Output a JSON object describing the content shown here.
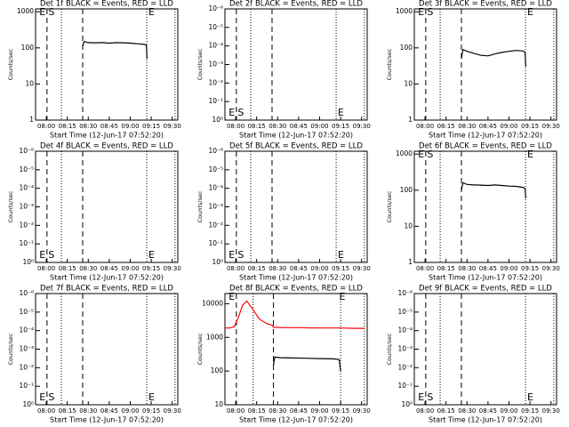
{
  "chart_data": [
    {
      "type": "line",
      "title": "Det 1f BLACK = Events, RED = LLD",
      "x_label": "Start Time (12-Jun-17 07:52:20)",
      "y_label": "Counts/sec",
      "log_scale": true,
      "xlim": [
        472.33,
        574
      ],
      "xticks": [
        {
          "value": 480,
          "label": "08:00"
        },
        {
          "value": 495,
          "label": "08:15"
        },
        {
          "value": 510,
          "label": "08:30"
        },
        {
          "value": 525,
          "label": "08:45"
        },
        {
          "value": 540,
          "label": "09:00"
        },
        {
          "value": 555,
          "label": "09:15"
        },
        {
          "value": 570,
          "label": "09:30"
        }
      ],
      "ylim": [
        1,
        1200
      ],
      "yticks": [
        1,
        10,
        100,
        1000
      ],
      "vlines": [
        {
          "x": 480.5,
          "style": "dashed"
        },
        {
          "x": 490.8,
          "style": "dotted"
        },
        {
          "x": 506,
          "style": "dashed"
        },
        {
          "x": 551.8,
          "style": "dotted"
        },
        {
          "x": 572,
          "style": "dotted"
        }
      ],
      "annotations": [
        {
          "text": "E",
          "x": 475
        },
        {
          "text": "S",
          "x": 481.5
        },
        {
          "text": "E",
          "x": 553
        }
      ],
      "series": [
        {
          "name": "Events",
          "color": "#000000",
          "x": [
            506,
            507,
            510,
            515,
            520,
            525,
            530,
            535,
            540,
            545,
            550,
            551.5,
            552
          ],
          "values": [
            110,
            150,
            140,
            138,
            140,
            135,
            140,
            138,
            135,
            130,
            125,
            120,
            50
          ]
        }
      ]
    },
    {
      "type": "line",
      "title": "Det 2f BLACK = Events, RED = LLD",
      "x_label": "Start Time (12-Jun-17 07:52:20)",
      "y_label": "Counts/sec",
      "log_scale": true,
      "xlim": [
        472.33,
        574
      ],
      "xticks": [
        {
          "value": 480,
          "label": "08:00"
        },
        {
          "value": 495,
          "label": "08:15"
        },
        {
          "value": 510,
          "label": "08:30"
        },
        {
          "value": 525,
          "label": "08:45"
        },
        {
          "value": 540,
          "label": "09:00"
        },
        {
          "value": 555,
          "label": "09:15"
        },
        {
          "value": 570,
          "label": "09:30"
        }
      ],
      "ylim": [
        1,
        1e-06
      ],
      "yticks": [
        {
          "value": 1e-06,
          "label": "10⁻⁶"
        },
        {
          "value": 1e-05,
          "label": "10⁻⁵"
        },
        {
          "value": 0.0001,
          "label": "10⁻⁴"
        },
        {
          "value": 0.001,
          "label": "10⁻³"
        },
        {
          "value": 0.01,
          "label": "10⁻²"
        },
        {
          "value": 0.1,
          "label": "10⁻¹"
        },
        {
          "value": 1,
          "label": "10⁰"
        }
      ],
      "vlines": [
        {
          "x": 480.5,
          "style": "dashed"
        },
        {
          "x": 490.8,
          "style": "dotted"
        },
        {
          "x": 506,
          "style": "dashed"
        },
        {
          "x": 551.8,
          "style": "dotted"
        },
        {
          "x": 572,
          "style": "dotted"
        }
      ],
      "annotations": [
        {
          "text": "E",
          "x": 475
        },
        {
          "text": "S",
          "x": 481.5
        },
        {
          "text": "E",
          "x": 553
        }
      ],
      "series": []
    },
    {
      "type": "line",
      "title": "Det 3f BLACK = Events, RED = LLD",
      "x_label": "Start Time (12-Jun-17 07:52:20)",
      "y_label": "Counts/sec",
      "log_scale": true,
      "xlim": [
        472.33,
        574
      ],
      "xticks": [
        {
          "value": 480,
          "label": "08:00"
        },
        {
          "value": 495,
          "label": "08:15"
        },
        {
          "value": 510,
          "label": "08:30"
        },
        {
          "value": 525,
          "label": "08:45"
        },
        {
          "value": 540,
          "label": "09:00"
        },
        {
          "value": 555,
          "label": "09:15"
        },
        {
          "value": 570,
          "label": "09:30"
        }
      ],
      "ylim": [
        1,
        1200
      ],
      "yticks": [
        1,
        10,
        100,
        1000
      ],
      "vlines": [
        {
          "x": 480.5,
          "style": "dashed"
        },
        {
          "x": 490.8,
          "style": "dotted"
        },
        {
          "x": 506,
          "style": "dashed"
        },
        {
          "x": 551.8,
          "style": "dotted"
        },
        {
          "x": 572,
          "style": "dotted"
        }
      ],
      "annotations": [
        {
          "text": "E",
          "x": 475
        },
        {
          "text": "S",
          "x": 481.5
        },
        {
          "text": "E",
          "x": 553
        }
      ],
      "series": [
        {
          "name": "Events",
          "color": "#000000",
          "x": [
            506,
            507,
            510,
            515,
            520,
            525,
            530,
            535,
            540,
            545,
            550,
            551.5,
            552
          ],
          "values": [
            50,
            90,
            80,
            70,
            62,
            60,
            68,
            75,
            80,
            85,
            82,
            75,
            30
          ]
        }
      ]
    },
    {
      "type": "line",
      "title": "Det 4f BLACK = Events, RED = LLD",
      "x_label": "Start Time (12-Jun-17 07:52:20)",
      "y_label": "Counts/sec",
      "log_scale": true,
      "xlim": [
        472.33,
        574
      ],
      "xticks": [
        {
          "value": 480,
          "label": "08:00"
        },
        {
          "value": 495,
          "label": "08:15"
        },
        {
          "value": 510,
          "label": "08:30"
        },
        {
          "value": 525,
          "label": "08:45"
        },
        {
          "value": 540,
          "label": "09:00"
        },
        {
          "value": 555,
          "label": "09:15"
        },
        {
          "value": 570,
          "label": "09:30"
        }
      ],
      "ylim": [
        1,
        1e-06
      ],
      "yticks": [
        {
          "value": 1e-06,
          "label": "10⁻⁶"
        },
        {
          "value": 1e-05,
          "label": "10⁻⁵"
        },
        {
          "value": 0.0001,
          "label": "10⁻⁴"
        },
        {
          "value": 0.001,
          "label": "10⁻³"
        },
        {
          "value": 0.01,
          "label": "10⁻²"
        },
        {
          "value": 0.1,
          "label": "10⁻¹"
        },
        {
          "value": 1,
          "label": "10⁰"
        }
      ],
      "vlines": [
        {
          "x": 480.5,
          "style": "dashed"
        },
        {
          "x": 490.8,
          "style": "dotted"
        },
        {
          "x": 506,
          "style": "dashed"
        },
        {
          "x": 551.8,
          "style": "dotted"
        },
        {
          "x": 572,
          "style": "dotted"
        }
      ],
      "annotations": [
        {
          "text": "E",
          "x": 475
        },
        {
          "text": "S",
          "x": 481.5
        },
        {
          "text": "E",
          "x": 553
        }
      ],
      "series": []
    },
    {
      "type": "line",
      "title": "Det 5f BLACK = Events, RED = LLD",
      "x_label": "Start Time (12-Jun-17 07:52:20)",
      "y_label": "Counts/sec",
      "log_scale": true,
      "xlim": [
        472.33,
        574
      ],
      "xticks": [
        {
          "value": 480,
          "label": "08:00"
        },
        {
          "value": 495,
          "label": "08:15"
        },
        {
          "value": 510,
          "label": "08:30"
        },
        {
          "value": 525,
          "label": "08:45"
        },
        {
          "value": 540,
          "label": "09:00"
        },
        {
          "value": 555,
          "label": "09:15"
        },
        {
          "value": 570,
          "label": "09:30"
        }
      ],
      "ylim": [
        1,
        1e-06
      ],
      "yticks": [
        {
          "value": 1e-06,
          "label": "10⁻⁶"
        },
        {
          "value": 1e-05,
          "label": "10⁻⁵"
        },
        {
          "value": 0.0001,
          "label": "10⁻⁴"
        },
        {
          "value": 0.001,
          "label": "10⁻³"
        },
        {
          "value": 0.01,
          "label": "10⁻²"
        },
        {
          "value": 0.1,
          "label": "10⁻¹"
        },
        {
          "value": 1,
          "label": "10⁰"
        }
      ],
      "vlines": [
        {
          "x": 480.5,
          "style": "dashed"
        },
        {
          "x": 490.8,
          "style": "dotted"
        },
        {
          "x": 506,
          "style": "dashed"
        },
        {
          "x": 551.8,
          "style": "dotted"
        },
        {
          "x": 572,
          "style": "dotted"
        }
      ],
      "annotations": [
        {
          "text": "E",
          "x": 475
        },
        {
          "text": "S",
          "x": 481.5
        },
        {
          "text": "E",
          "x": 553
        }
      ],
      "series": []
    },
    {
      "type": "line",
      "title": "Det 6f BLACK = Events, RED = LLD",
      "x_label": "Start Time (12-Jun-17 07:52:20)",
      "y_label": "Counts/sec",
      "log_scale": true,
      "xlim": [
        472.33,
        574
      ],
      "xticks": [
        {
          "value": 480,
          "label": "08:00"
        },
        {
          "value": 495,
          "label": "08:15"
        },
        {
          "value": 510,
          "label": "08:30"
        },
        {
          "value": 525,
          "label": "08:45"
        },
        {
          "value": 540,
          "label": "09:00"
        },
        {
          "value": 555,
          "label": "09:15"
        },
        {
          "value": 570,
          "label": "09:30"
        }
      ],
      "ylim": [
        1,
        1200
      ],
      "yticks": [
        1,
        10,
        100,
        1000
      ],
      "vlines": [
        {
          "x": 480.5,
          "style": "dashed"
        },
        {
          "x": 490.8,
          "style": "dotted"
        },
        {
          "x": 506,
          "style": "dashed"
        },
        {
          "x": 551.8,
          "style": "dotted"
        },
        {
          "x": 572,
          "style": "dotted"
        }
      ],
      "annotations": [
        {
          "text": "E",
          "x": 475
        },
        {
          "text": "S",
          "x": 481.5
        },
        {
          "text": "E",
          "x": 553
        }
      ],
      "series": [
        {
          "name": "Events",
          "color": "#000000",
          "x": [
            506,
            507,
            510,
            515,
            520,
            525,
            530,
            535,
            540,
            545,
            550,
            551.5,
            552
          ],
          "values": [
            100,
            160,
            145,
            140,
            138,
            135,
            140,
            135,
            130,
            128,
            120,
            110,
            60
          ]
        }
      ]
    },
    {
      "type": "line",
      "title": "Det 7f BLACK = Events, RED = LLD",
      "x_label": "Start Time (12-Jun-17 07:52:20)",
      "y_label": "Counts/sec",
      "log_scale": true,
      "xlim": [
        472.33,
        574
      ],
      "xticks": [
        {
          "value": 480,
          "label": "08:00"
        },
        {
          "value": 495,
          "label": "08:15"
        },
        {
          "value": 510,
          "label": "08:30"
        },
        {
          "value": 525,
          "label": "08:45"
        },
        {
          "value": 540,
          "label": "09:00"
        },
        {
          "value": 555,
          "label": "09:15"
        },
        {
          "value": 570,
          "label": "09:30"
        }
      ],
      "ylim": [
        1,
        1e-06
      ],
      "yticks": [
        {
          "value": 1e-06,
          "label": "10⁻⁶"
        },
        {
          "value": 1e-05,
          "label": "10⁻⁵"
        },
        {
          "value": 0.0001,
          "label": "10⁻⁴"
        },
        {
          "value": 0.001,
          "label": "10⁻³"
        },
        {
          "value": 0.01,
          "label": "10⁻²"
        },
        {
          "value": 0.1,
          "label": "10⁻¹"
        },
        {
          "value": 1,
          "label": "10⁰"
        }
      ],
      "vlines": [
        {
          "x": 480.5,
          "style": "dashed"
        },
        {
          "x": 490.8,
          "style": "dotted"
        },
        {
          "x": 506,
          "style": "dashed"
        },
        {
          "x": 551.8,
          "style": "dotted"
        },
        {
          "x": 572,
          "style": "dotted"
        }
      ],
      "annotations": [
        {
          "text": "E",
          "x": 475
        },
        {
          "text": "S",
          "x": 481.5
        },
        {
          "text": "E",
          "x": 553
        }
      ],
      "series": []
    },
    {
      "type": "line",
      "title": "Det 8f BLACK = Events, RED = LLD",
      "x_label": "Start Time (12-Jun-17 07:52:20)",
      "y_label": "Counts/sec",
      "log_scale": true,
      "xlim": [
        472.33,
        574
      ],
      "xticks": [
        {
          "value": 480,
          "label": "08:00"
        },
        {
          "value": 495,
          "label": "08:15"
        },
        {
          "value": 510,
          "label": "08:30"
        },
        {
          "value": 525,
          "label": "08:45"
        },
        {
          "value": 540,
          "label": "09:00"
        },
        {
          "value": 555,
          "label": "09:15"
        },
        {
          "value": 570,
          "label": "09:30"
        }
      ],
      "ylim": [
        10,
        20000
      ],
      "yticks": [
        10,
        100,
        1000,
        10000
      ],
      "vlines": [
        {
          "x": 480.5,
          "style": "dashed"
        },
        {
          "x": 492.5,
          "style": "dotted"
        },
        {
          "x": 507,
          "style": "dashed"
        },
        {
          "x": 555,
          "style": "dotted"
        },
        {
          "x": 572,
          "style": "dotted"
        }
      ],
      "annotations": [
        {
          "text": "E",
          "x": 475
        },
        {
          "text": "E",
          "x": 554
        }
      ],
      "series": [
        {
          "name": "LLD",
          "color": "#ff0000",
          "x": [
            472.5,
            476,
            479,
            482,
            485,
            488,
            492,
            497,
            502,
            506,
            507,
            515,
            525,
            535,
            545,
            555,
            565,
            572
          ],
          "values": [
            1900,
            1900,
            2100,
            4000,
            9000,
            12000,
            7000,
            3500,
            2600,
            2300,
            2000,
            1950,
            1950,
            1900,
            1900,
            1900,
            1850,
            1850
          ]
        },
        {
          "name": "Events",
          "color": "#000000",
          "x": [
            507,
            508,
            512,
            520,
            530,
            540,
            550,
            554,
            555
          ],
          "values": [
            150,
            260,
            250,
            245,
            240,
            235,
            230,
            220,
            100
          ]
        }
      ]
    },
    {
      "type": "line",
      "title": "Det 9f BLACK = Events, RED = LLD",
      "x_label": "Start Time (12-Jun-17 07:52:20)",
      "y_label": "Counts/sec",
      "log_scale": true,
      "xlim": [
        472.33,
        574
      ],
      "xticks": [
        {
          "value": 480,
          "label": "08:00"
        },
        {
          "value": 495,
          "label": "08:15"
        },
        {
          "value": 510,
          "label": "08:30"
        },
        {
          "value": 525,
          "label": "08:45"
        },
        {
          "value": 540,
          "label": "09:00"
        },
        {
          "value": 555,
          "label": "09:15"
        },
        {
          "value": 570,
          "label": "09:30"
        }
      ],
      "ylim": [
        1,
        1e-06
      ],
      "yticks": [
        {
          "value": 1e-06,
          "label": "10⁻⁶"
        },
        {
          "value": 1e-05,
          "label": "10⁻⁵"
        },
        {
          "value": 0.0001,
          "label": "10⁻⁴"
        },
        {
          "value": 0.001,
          "label": "10⁻³"
        },
        {
          "value": 0.01,
          "label": "10⁻²"
        },
        {
          "value": 0.1,
          "label": "10⁻¹"
        },
        {
          "value": 1,
          "label": "10⁰"
        }
      ],
      "vlines": [
        {
          "x": 480.5,
          "style": "dashed"
        },
        {
          "x": 490.8,
          "style": "dotted"
        },
        {
          "x": 506,
          "style": "dashed"
        },
        {
          "x": 551.8,
          "style": "dotted"
        },
        {
          "x": 572,
          "style": "dotted"
        }
      ],
      "annotations": [
        {
          "text": "E",
          "x": 475
        },
        {
          "text": "S",
          "x": 481.5
        },
        {
          "text": "E",
          "x": 553
        }
      ],
      "series": []
    }
  ]
}
